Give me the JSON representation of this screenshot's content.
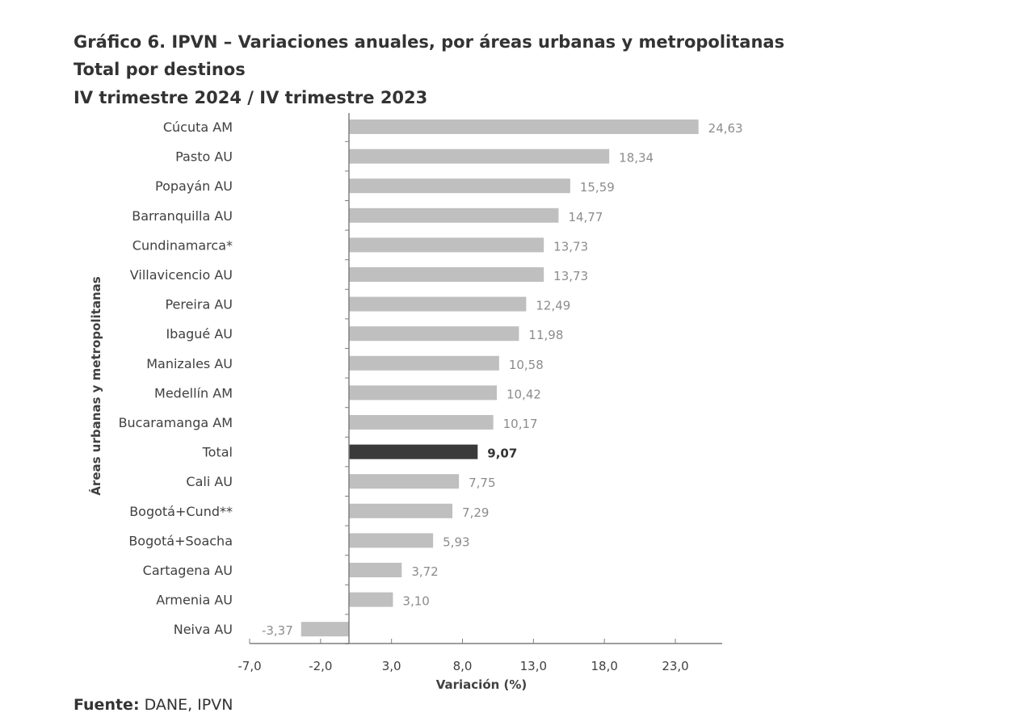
{
  "chart_data": {
    "type": "bar",
    "orientation": "horizontal",
    "title": "Gráfico 6. IPVN – Variaciones anuales, por áreas urbanas y metropolitanas",
    "subtitle": [
      "Total por destinos",
      "IV trimestre 2024 / IV trimestre 2023"
    ],
    "xlabel": "Variación (%)",
    "ylabel": "Áreas urbanas y metropolitanas",
    "categories": [
      "Cúcuta AM",
      "Pasto AU",
      "Popayán AU",
      "Barranquilla AU",
      "Cundinamarca*",
      "Villavicencio AU",
      "Pereira AU",
      "Ibagué AU",
      "Manizales AU",
      "Medellín AM",
      "Bucaramanga AM",
      "Total",
      "Cali AU",
      "Bogotá+Cund**",
      "Bogotá+Soacha",
      "Cartagena AU",
      "Armenia AU",
      "Neiva AU"
    ],
    "values": [
      24.63,
      18.34,
      15.59,
      14.77,
      13.73,
      13.73,
      12.49,
      11.98,
      10.58,
      10.42,
      10.17,
      9.07,
      7.75,
      7.29,
      5.93,
      3.72,
      3.1,
      -3.37
    ],
    "value_labels": [
      "24,63",
      "18,34",
      "15,59",
      "14,77",
      "13,73",
      "13,73",
      "12,49",
      "11,98",
      "10,58",
      "10,42",
      "10,17",
      "9,07",
      "7,75",
      "7,29",
      "5,93",
      "3,72",
      "3,10",
      "-3,37"
    ],
    "highlight": "Total",
    "xticks": [
      "-7,0",
      "-2,0",
      "3,0",
      "8,0",
      "13,0",
      "18,0",
      "23,0"
    ],
    "xtick_values": [
      -7,
      -2,
      3,
      8,
      13,
      18,
      23
    ],
    "xlim": [
      -7,
      26.3
    ],
    "grid": false,
    "colors": {
      "bar": "#bfbfbf",
      "highlight": "#3a3a3a",
      "label": "#8c8c8c",
      "axis": "#7f7f7f"
    }
  },
  "source": {
    "label": "Fuente:",
    "text": " DANE, IPVN"
  }
}
